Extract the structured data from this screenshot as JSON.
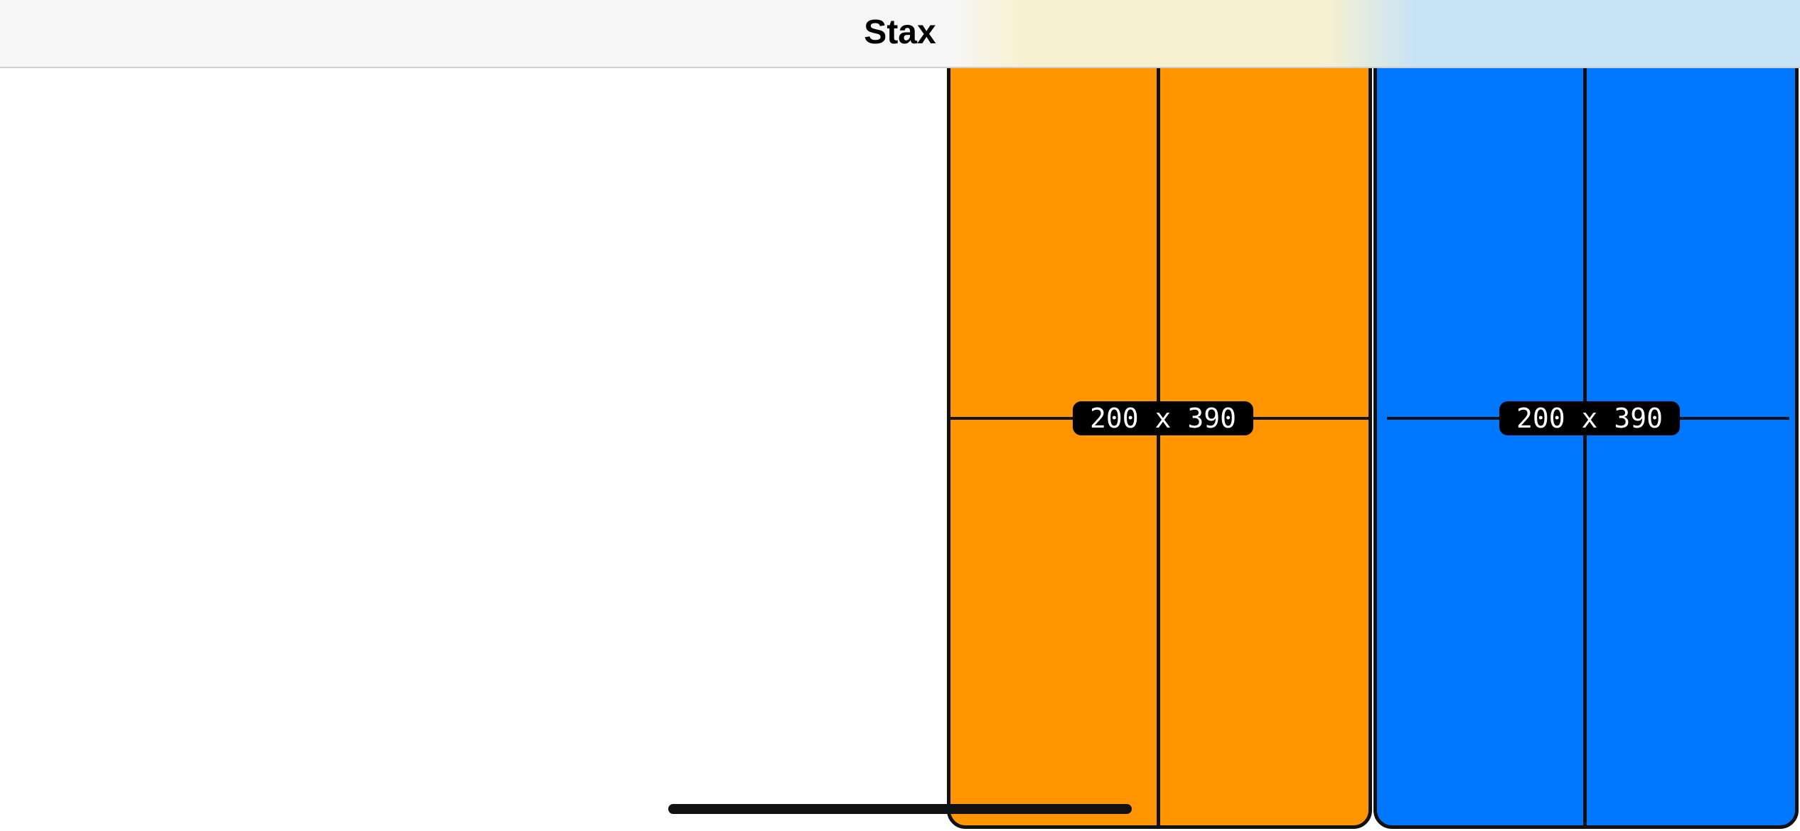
{
  "navbar": {
    "title": "Stax"
  },
  "panels": [
    {
      "label": "200 x 390",
      "color": "#FF9500"
    },
    {
      "label": "200 x 390",
      "color": "#0077FF"
    }
  ],
  "colors": {
    "orange": "#FF9500",
    "blue": "#0077FF",
    "navbar_bg": "#F6F6F6",
    "divider": "#111111"
  }
}
